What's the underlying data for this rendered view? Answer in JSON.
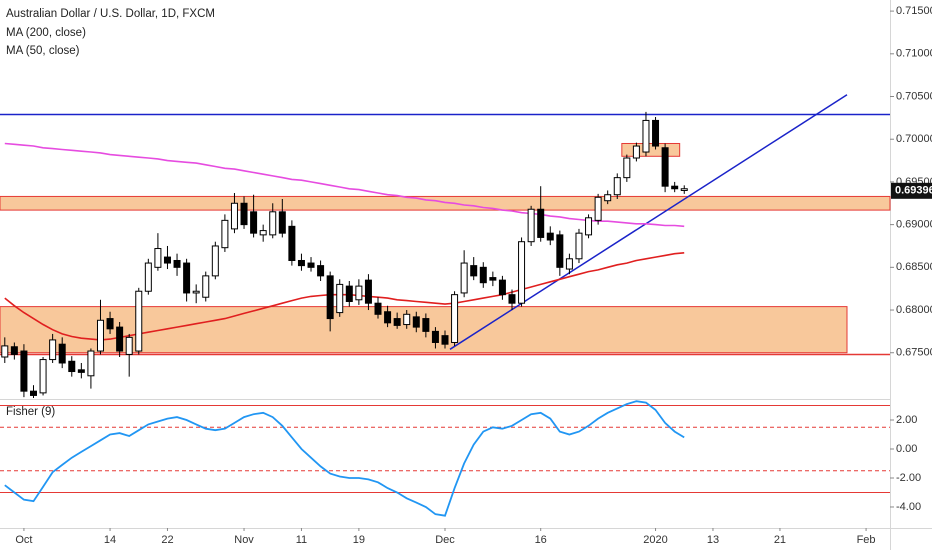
{
  "chart_data": {
    "type": "candlestick",
    "title": "Australian Dollar / U.S. Dollar, 1D, FXCM",
    "categories": [
      null,
      null,
      "Oct",
      null,
      null,
      null,
      null,
      null,
      null,
      null,
      null,
      "14",
      null,
      null,
      null,
      null,
      null,
      "22",
      null,
      null,
      null,
      null,
      null,
      null,
      null,
      "Nov",
      null,
      null,
      null,
      null,
      null,
      "11",
      null,
      null,
      null,
      null,
      null,
      "19",
      null,
      null,
      null,
      null,
      null,
      null,
      null,
      null,
      "Dec",
      null,
      null,
      null,
      null,
      null,
      null,
      null,
      null,
      null,
      "16",
      null,
      null,
      null,
      null,
      null,
      null,
      null,
      null,
      null,
      null,
      null,
      "2020",
      null,
      null,
      null,
      null,
      null,
      "13",
      null,
      null,
      null,
      null,
      null,
      null,
      "21",
      null,
      null,
      null,
      null,
      null,
      null,
      null,
      null,
      "Feb",
      null,
      null
    ],
    "open": [
      0.6745,
      0.6757,
      0.6752,
      0.6705,
      0.6703,
      0.6742,
      0.676,
      0.674,
      0.673,
      0.6723,
      0.6752,
      0.679,
      0.678,
      0.6748,
      0.6752,
      0.6822,
      0.685,
      0.6862,
      0.6858,
      0.6855,
      0.682,
      0.6815,
      0.684,
      0.6873,
      0.6895,
      0.6925,
      0.6915,
      0.6888,
      0.6888,
      0.6915,
      0.6898,
      0.6858,
      0.6855,
      0.6852,
      0.684,
      0.6797,
      0.6828,
      0.6812,
      0.6835,
      0.6808,
      0.6798,
      0.679,
      0.6783,
      0.6792,
      0.679,
      0.6775,
      0.677,
      0.6762,
      0.682,
      0.6852,
      0.685,
      0.6838,
      0.6835,
      0.6818,
      0.6808,
      0.688,
      0.6918,
      0.689,
      0.6888,
      0.6848,
      0.686,
      0.6888,
      0.6905,
      0.6928,
      0.6935,
      0.6955,
      0.6978,
      0.6985,
      0.7022,
      0.699,
      0.6945,
      0.694,
      null,
      null,
      null,
      null,
      null,
      null,
      null,
      null,
      null,
      null,
      null,
      null,
      null,
      null,
      null,
      null,
      null,
      null,
      null,
      null,
      null
    ],
    "high": [
      0.6768,
      0.6762,
      0.676,
      0.6712,
      0.6745,
      0.6772,
      0.6768,
      0.6746,
      0.6738,
      0.6755,
      0.6812,
      0.6798,
      0.6786,
      0.6772,
      0.6826,
      0.686,
      0.689,
      0.6875,
      0.6866,
      0.686,
      0.683,
      0.6845,
      0.688,
      0.6912,
      0.6937,
      0.6933,
      0.6935,
      0.69,
      0.6925,
      0.693,
      0.6905,
      0.6866,
      0.6862,
      0.6858,
      0.6845,
      0.6836,
      0.6834,
      0.6836,
      0.6842,
      0.6815,
      0.6805,
      0.6797,
      0.68,
      0.6798,
      0.6796,
      0.678,
      0.6776,
      0.6822,
      0.687,
      0.6862,
      0.6856,
      0.6845,
      0.684,
      0.6824,
      0.6885,
      0.6922,
      0.6945,
      0.6898,
      0.6893,
      0.6866,
      0.6895,
      0.6912,
      0.6936,
      0.694,
      0.696,
      0.6982,
      0.6996,
      0.7032,
      0.7026,
      0.6995,
      0.695,
      0.6946,
      null,
      null,
      null,
      null,
      null,
      null,
      null,
      null,
      null,
      null,
      null,
      null,
      null,
      null,
      null,
      null,
      null,
      null,
      null,
      null,
      null
    ],
    "low": [
      0.6738,
      0.6742,
      0.6698,
      0.6697,
      0.67,
      0.6738,
      0.6732,
      0.6722,
      0.672,
      0.6708,
      0.6748,
      0.6772,
      0.6745,
      0.6722,
      0.6748,
      0.6818,
      0.6846,
      0.6848,
      0.684,
      0.681,
      0.6808,
      0.681,
      0.6836,
      0.6868,
      0.689,
      0.6895,
      0.6885,
      0.688,
      0.6884,
      0.6885,
      0.6852,
      0.6846,
      0.6845,
      0.6834,
      0.6775,
      0.6792,
      0.6804,
      0.6806,
      0.68,
      0.679,
      0.678,
      0.6778,
      0.6778,
      0.6774,
      0.6768,
      0.6755,
      0.6755,
      0.6758,
      0.6815,
      0.6835,
      0.6826,
      0.6828,
      0.6812,
      0.68,
      0.6804,
      0.6875,
      0.688,
      0.6876,
      0.684,
      0.6842,
      0.6855,
      0.6884,
      0.69,
      0.6924,
      0.693,
      0.695,
      0.6974,
      0.698,
      0.6988,
      0.6938,
      0.6938,
      0.6936,
      null,
      null,
      null,
      null,
      null,
      null,
      null,
      null,
      null,
      null,
      null,
      null,
      null,
      null,
      null,
      null,
      null,
      null,
      null,
      null,
      null
    ],
    "close": [
      0.6758,
      0.6748,
      0.6705,
      0.67,
      0.6742,
      0.6765,
      0.6738,
      0.6728,
      0.6727,
      0.6752,
      0.6788,
      0.6778,
      0.6752,
      0.6768,
      0.6822,
      0.6855,
      0.6872,
      0.6855,
      0.685,
      0.682,
      0.6822,
      0.684,
      0.6875,
      0.6905,
      0.6925,
      0.69,
      0.689,
      0.6893,
      0.6915,
      0.689,
      0.6858,
      0.6852,
      0.685,
      0.684,
      0.679,
      0.683,
      0.681,
      0.6828,
      0.6808,
      0.6795,
      0.6785,
      0.6782,
      0.6795,
      0.678,
      0.6775,
      0.6762,
      0.676,
      0.6818,
      0.6855,
      0.684,
      0.6832,
      0.6835,
      0.6818,
      0.6808,
      0.688,
      0.6918,
      0.6885,
      0.6882,
      0.685,
      0.686,
      0.689,
      0.6908,
      0.6932,
      0.6935,
      0.6955,
      0.6978,
      0.6992,
      0.7022,
      0.6992,
      0.6945,
      0.6942,
      0.6942,
      null,
      null,
      null,
      null,
      null,
      null,
      null,
      null,
      null,
      null,
      null,
      null,
      null,
      null,
      null,
      null,
      null,
      null,
      null,
      null,
      null
    ],
    "up_color": "#ffffff",
    "down_color": "#000000",
    "wick_color": "#000000",
    "series": [
      {
        "name": "MA (200, close)",
        "color": "#e64ce0",
        "values": [
          0.6995,
          0.6994,
          0.6993,
          0.6992,
          0.699,
          0.6989,
          0.6988,
          0.6987,
          0.6986,
          0.6985,
          0.6984,
          0.6982,
          0.6981,
          0.698,
          0.6979,
          0.6978,
          0.6977,
          0.6975,
          0.6974,
          0.6973,
          0.6972,
          0.697,
          0.6968,
          0.6966,
          0.6965,
          0.6963,
          0.6961,
          0.6959,
          0.6957,
          0.6955,
          0.6953,
          0.6952,
          0.695,
          0.6948,
          0.6946,
          0.6944,
          0.6942,
          0.6941,
          0.6939,
          0.6937,
          0.6935,
          0.6934,
          0.6932,
          0.6931,
          0.6929,
          0.6928,
          0.6926,
          0.6925,
          0.6923,
          0.6922,
          0.692,
          0.6919,
          0.6917,
          0.6916,
          0.6914,
          0.6913,
          0.6912,
          0.691,
          0.6909,
          0.6907,
          0.6906,
          0.6905,
          0.6904,
          0.6904,
          0.6903,
          0.6902,
          0.6901,
          0.6901,
          0.69,
          0.6899,
          0.6899,
          0.6898,
          null,
          null,
          null,
          null,
          null,
          null,
          null,
          null,
          null,
          null,
          null,
          null,
          null,
          null,
          null,
          null,
          null,
          null,
          null,
          null,
          null
        ]
      },
      {
        "name": "MA (50, close)",
        "color": "#e01f1f",
        "values": [
          0.6814,
          0.6805,
          0.6797,
          0.679,
          0.6783,
          0.6777,
          0.6772,
          0.6769,
          0.6767,
          0.6766,
          0.6765,
          0.6766,
          0.6768,
          0.677,
          0.6772,
          0.6774,
          0.6776,
          0.6778,
          0.678,
          0.6782,
          0.6784,
          0.6786,
          0.6788,
          0.679,
          0.6793,
          0.6796,
          0.6799,
          0.6802,
          0.6805,
          0.6808,
          0.6811,
          0.6814,
          0.6816,
          0.6817,
          0.6818,
          0.6818,
          0.6818,
          0.6817,
          0.6816,
          0.6815,
          0.6814,
          0.6812,
          0.6811,
          0.681,
          0.6809,
          0.6808,
          0.6807,
          0.6808,
          0.681,
          0.6812,
          0.6814,
          0.6816,
          0.6818,
          0.6821,
          0.6824,
          0.6827,
          0.683,
          0.6833,
          0.6836,
          0.6839,
          0.6842,
          0.6845,
          0.6847,
          0.685,
          0.6853,
          0.6855,
          0.6858,
          0.686,
          0.6862,
          0.6864,
          0.6866,
          0.6867,
          null,
          null,
          null,
          null,
          null,
          null,
          null,
          null,
          null,
          null,
          null,
          null,
          null,
          null,
          null,
          null,
          null,
          null,
          null,
          null,
          null
        ]
      }
    ],
    "ylim": [
      0.6697,
      0.7163
    ],
    "yticks": [
      {
        "value": 0.715,
        "label": "0.71500"
      },
      {
        "value": 0.71,
        "label": "0.71000"
      },
      {
        "value": 0.705,
        "label": "0.70500"
      },
      {
        "value": 0.7,
        "label": "0.70000"
      },
      {
        "value": 0.695,
        "label": "0.69500"
      },
      {
        "value": 0.69,
        "label": "0.69000"
      },
      {
        "value": 0.685,
        "label": "0.68500"
      },
      {
        "value": 0.68,
        "label": "0.68000"
      },
      {
        "value": 0.675,
        "label": "0.67500"
      }
    ],
    "last_price": 0.69396,
    "grid": false,
    "drawings": {
      "resistance": 0.7029,
      "resistance_color": "#1a23c9",
      "zones": [
        [
          0.6917,
          0.6933
        ],
        [
          0.675,
          0.6804
        ],
        [
          0.698,
          0.6995
        ]
      ],
      "zone_color": "#f5b57a",
      "zone_border": "#e53935",
      "support_line": 0.6748,
      "trendline": [
        0.6754,
        0.7052
      ],
      "trendline_color": "#1a23c9"
    },
    "indicator": {
      "name": "Fisher (9)",
      "color": "#2196f3",
      "values": [
        -2.5,
        -3.0,
        -3.5,
        -3.6,
        -2.6,
        -1.6,
        -1.1,
        -0.6,
        -0.2,
        0.2,
        0.6,
        1.0,
        1.1,
        0.9,
        1.3,
        1.7,
        1.9,
        2.1,
        2.2,
        2.0,
        1.7,
        1.4,
        1.3,
        1.4,
        1.8,
        2.2,
        2.4,
        2.5,
        2.2,
        1.6,
        0.8,
        0.0,
        -0.6,
        -1.2,
        -1.7,
        -1.9,
        -2.0,
        -2.0,
        -2.1,
        -2.3,
        -2.7,
        -3.0,
        -3.4,
        -3.7,
        -4.0,
        -4.5,
        -4.6,
        -2.7,
        -1.0,
        0.3,
        1.2,
        1.5,
        1.4,
        1.6,
        2.0,
        2.4,
        2.5,
        2.1,
        1.2,
        1.0,
        1.2,
        1.6,
        2.1,
        2.5,
        2.8,
        3.1,
        3.3,
        3.2,
        2.7,
        1.8,
        1.2,
        0.8,
        null,
        null,
        null,
        null,
        null,
        null,
        null,
        null,
        null,
        null,
        null,
        null,
        null,
        null,
        null,
        null,
        null,
        null,
        null,
        null,
        null
      ],
      "ylim": [
        -5.45,
        3.38
      ],
      "yticks": [
        {
          "value": 2,
          "label": "2.00"
        },
        {
          "value": 0,
          "label": "0.00"
        },
        {
          "value": -2,
          "label": "-2.00"
        },
        {
          "value": -4,
          "label": "-4.00"
        }
      ],
      "solid_levels": [
        3,
        -3
      ],
      "dashed_levels": [
        1.5,
        -1.5
      ],
      "level_color": "#e53935"
    }
  }
}
